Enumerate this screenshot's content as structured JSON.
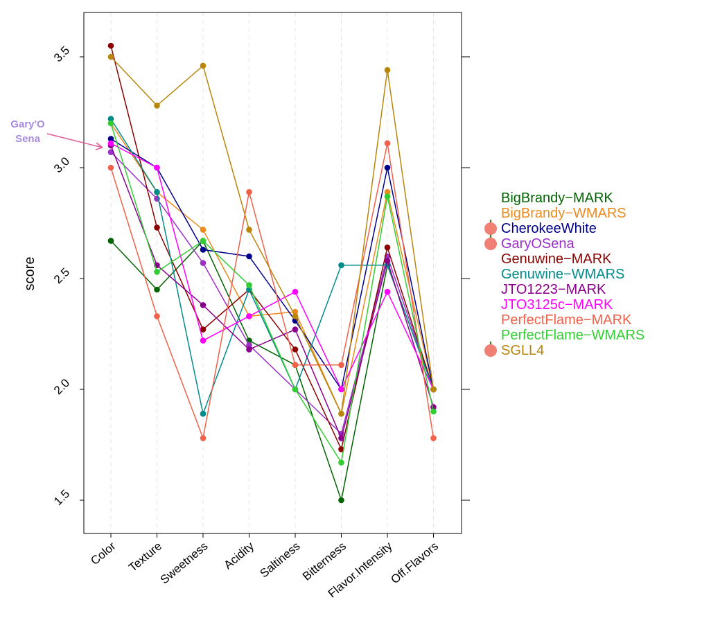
{
  "chart_data": {
    "type": "line",
    "title": "",
    "xlabel": "",
    "ylabel": "score",
    "ylim": [
      1.35,
      3.7
    ],
    "yticks": [
      1.5,
      2.0,
      2.5,
      3.0,
      3.5
    ],
    "ytick_labels": [
      "1.5",
      "2.0",
      "2.5",
      "3.0",
      "3.5"
    ],
    "categories": [
      "Color",
      "Texture",
      "Sweetness",
      "Acidity",
      "Saltiness",
      "Bitterness",
      "Flavor.Intensity",
      "Off.Flavors"
    ],
    "grid": "vertical dashed",
    "legend_position": "right",
    "series": [
      {
        "name": "BigBrandy−MARK",
        "color": "#006400",
        "icon": false,
        "values": [
          2.67,
          2.45,
          2.67,
          2.22,
          2.11,
          1.5,
          2.56,
          2.0
        ]
      },
      {
        "name": "BigBrandy−WMARS",
        "color": "#ee8a1d",
        "icon": false,
        "values": [
          3.2,
          2.89,
          2.72,
          2.33,
          2.35,
          1.89,
          2.89,
          2.0
        ]
      },
      {
        "name": "CherokeeWhite",
        "color": "#00008b",
        "icon": true,
        "values": [
          3.13,
          3.0,
          2.63,
          2.6,
          2.31,
          2.0,
          3.0,
          2.0
        ]
      },
      {
        "name": "GaryOSena",
        "color": "#9b30c8",
        "icon": true,
        "values": [
          3.07,
          2.86,
          2.57,
          2.2,
          2.0,
          1.8,
          2.6,
          2.0
        ]
      },
      {
        "name": "Genuwine−MARK",
        "color": "#8b0000",
        "icon": false,
        "values": [
          3.55,
          2.73,
          2.27,
          2.45,
          2.18,
          1.73,
          2.64,
          2.0
        ]
      },
      {
        "name": "Genuwine−WMARS",
        "color": "#008b8b",
        "icon": false,
        "values": [
          3.22,
          2.89,
          1.89,
          2.45,
          2.0,
          2.56,
          2.56,
          2.0
        ]
      },
      {
        "name": "JTO1223−MARK",
        "color": "#8b008b",
        "icon": false,
        "values": [
          3.1,
          2.56,
          2.38,
          2.18,
          2.27,
          1.78,
          2.58,
          1.92
        ]
      },
      {
        "name": "JTO3125c−MARK",
        "color": "#ff00ff",
        "icon": false,
        "values": [
          3.11,
          3.0,
          2.22,
          2.33,
          2.44,
          2.0,
          2.44,
          2.0
        ]
      },
      {
        "name": "PerfectFlame−MARK",
        "color": "#f0604a",
        "icon": false,
        "values": [
          3.0,
          2.33,
          1.78,
          2.89,
          2.11,
          2.11,
          3.11,
          1.78
        ]
      },
      {
        "name": "PerfectFlame−WMARS",
        "color": "#32cd32",
        "icon": false,
        "values": [
          3.2,
          2.53,
          2.67,
          2.47,
          2.0,
          1.67,
          2.87,
          1.9
        ]
      },
      {
        "name": "SGLL4",
        "color": "#b8860b",
        "icon": true,
        "values": [
          3.5,
          3.28,
          3.46,
          2.72,
          2.33,
          1.89,
          3.44,
          2.0
        ]
      }
    ],
    "annotation": {
      "lines": [
        "Gary'O",
        "Sena"
      ],
      "color": "#a78bdf",
      "arrow_color": "#e05a9a"
    }
  }
}
